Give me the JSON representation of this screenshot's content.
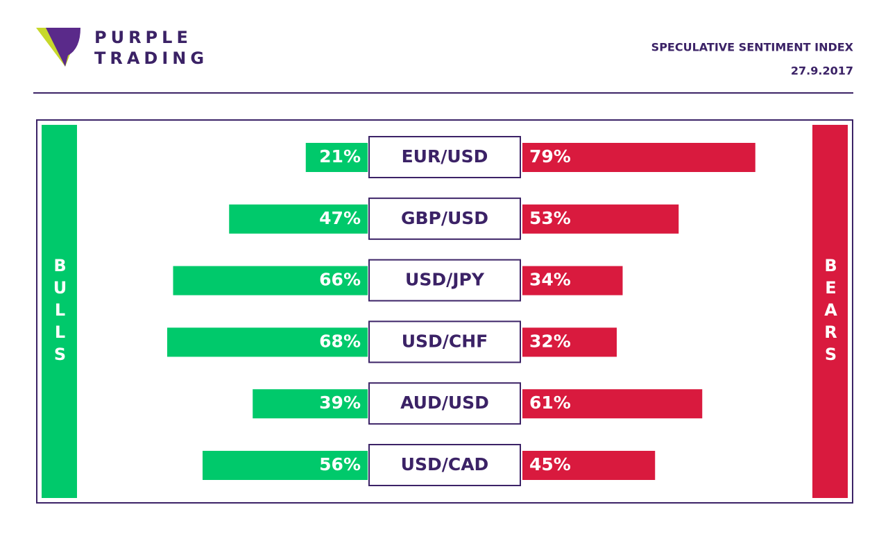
{
  "logo": {
    "line1": "PURPLE",
    "line2": "TRADING"
  },
  "chart_data": {
    "type": "diverging-bar",
    "title": "SPECULATIVE SENTIMENT INDEX",
    "subtitle": "27.9.2017",
    "categories": [
      "EUR/USD",
      "GBP/USD",
      "USD/JPY",
      "USD/CHF",
      "AUD/USD",
      "USD/CAD"
    ],
    "series": [
      {
        "name": "BULLS",
        "color": "#00c96b",
        "values": [
          21,
          47,
          66,
          68,
          39,
          56
        ],
        "value_labels": [
          "21%",
          "47%",
          "66%",
          "68%",
          "39%",
          "56%"
        ]
      },
      {
        "name": "BEARS",
        "color": "#d91a3e",
        "values": [
          79,
          53,
          34,
          32,
          61,
          45
        ],
        "value_labels": [
          "79%",
          "53%",
          "34%",
          "32%",
          "61%",
          "45%"
        ]
      }
    ]
  }
}
